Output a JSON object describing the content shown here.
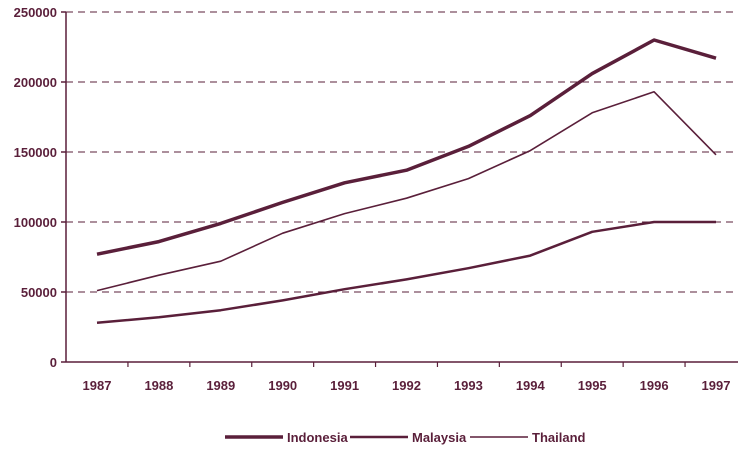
{
  "chart_data": {
    "type": "line",
    "title": "",
    "xlabel": "",
    "ylabel": "",
    "categories": [
      "1987",
      "1988",
      "1989",
      "1990",
      "1991",
      "1992",
      "1993",
      "1994",
      "1995",
      "1996",
      "1997"
    ],
    "yticks": [
      "0",
      "50000",
      "100000",
      "150000",
      "200000",
      "250000"
    ],
    "ylim": [
      0,
      250000
    ],
    "grid": "horizontal-dashed",
    "legend": "bottom",
    "series": [
      {
        "name": "Indonesia",
        "color": "#5a1f3a",
        "values": [
          77000,
          86000,
          99000,
          114000,
          128000,
          137000,
          154000,
          176000,
          206000,
          230000,
          217000
        ]
      },
      {
        "name": "Malaysia",
        "color": "#5a1f3a",
        "values": [
          28000,
          32000,
          37000,
          44000,
          52000,
          59000,
          67000,
          76000,
          93000,
          100000,
          100000
        ]
      },
      {
        "name": "Thailand",
        "color": "#5a1f3a",
        "values": [
          51000,
          62000,
          72000,
          92000,
          106000,
          117000,
          131000,
          151000,
          178000,
          193000,
          148000
        ]
      }
    ]
  }
}
